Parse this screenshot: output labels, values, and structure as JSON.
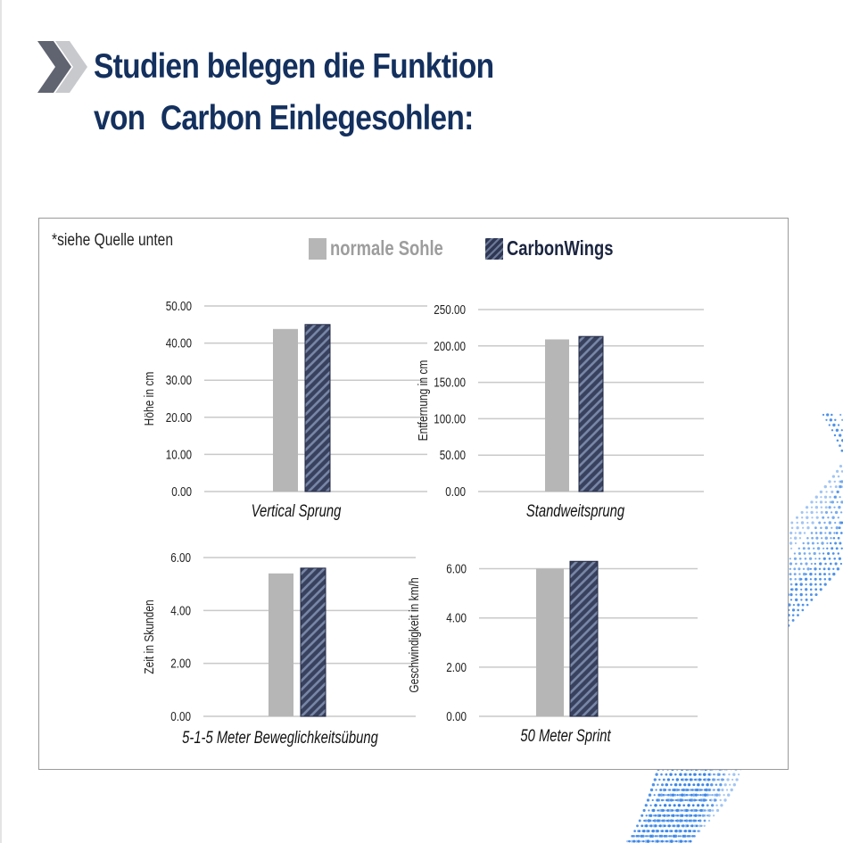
{
  "header": {
    "title_line1": "Studien belegen die Funktion",
    "title_line2": "von  Carbon Einlegesohlen:"
  },
  "card": {
    "note": "*siehe Quelle unten",
    "legend": {
      "series1": "normale Sohle",
      "series2": "CarbonWings"
    }
  },
  "colors": {
    "title": "#13305e",
    "series1": "#b6b6b6",
    "series2": "#38425f",
    "wave": "#2f7fe6"
  },
  "chart_data": [
    {
      "type": "bar",
      "categories": [
        "Vertical Sprung"
      ],
      "series": [
        {
          "name": "normale Sohle",
          "values": [
            43.8
          ]
        },
        {
          "name": "CarbonWings",
          "values": [
            45.0
          ]
        }
      ],
      "ylabel": "Höhe in cm",
      "ylim": [
        0,
        50
      ],
      "yticks": [
        "0.00",
        "10.00",
        "20.00",
        "30.00",
        "40.00",
        "50.00"
      ],
      "grid": true
    },
    {
      "type": "bar",
      "categories": [
        "Standweitsprung"
      ],
      "series": [
        {
          "name": "normale Sohle",
          "values": [
            209
          ]
        },
        {
          "name": "CarbonWings",
          "values": [
            213
          ]
        }
      ],
      "ylabel": "Entfernung in cm",
      "ylim": [
        0,
        250
      ],
      "yticks": [
        "0.00",
        "50.00",
        "100.00",
        "150.00",
        "200.00",
        "250.00"
      ],
      "grid": true
    },
    {
      "type": "bar",
      "categories": [
        "5-1-5 Meter Beweglichkeitsübung"
      ],
      "series": [
        {
          "name": "normale Sohle",
          "values": [
            5.4
          ]
        },
        {
          "name": "CarbonWings",
          "values": [
            5.6
          ]
        }
      ],
      "ylabel": "Zeit in Skunden",
      "ylim": [
        0,
        6
      ],
      "yticks": [
        "0.00",
        "2.00",
        "4.00",
        "6.00"
      ],
      "grid": true
    },
    {
      "type": "bar",
      "categories": [
        "50 Meter Sprint"
      ],
      "series": [
        {
          "name": "normale Sohle",
          "values": [
            6.0
          ]
        },
        {
          "name": "CarbonWings",
          "values": [
            6.3
          ]
        }
      ],
      "ylabel": "Geschwindigkeit in km/h",
      "ylim": [
        0,
        6.6
      ],
      "yticks": [
        "0.00",
        "2.00",
        "4.00",
        "6.00"
      ],
      "grid": true
    }
  ]
}
